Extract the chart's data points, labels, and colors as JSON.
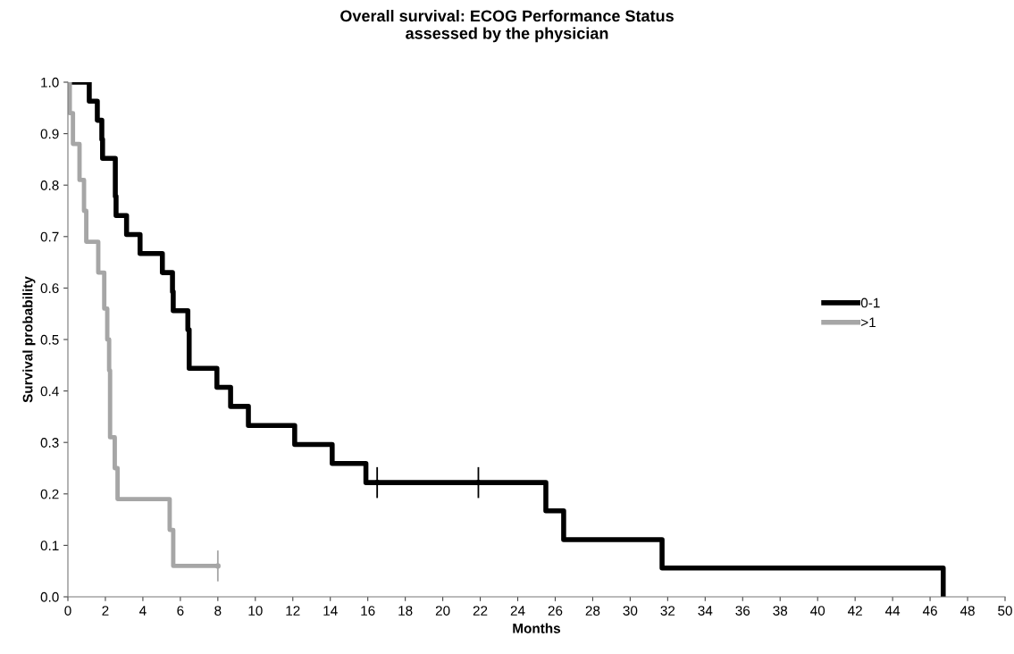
{
  "chart_data": {
    "type": "step",
    "title": "Overall survival: ECOG Performance Status\nassessed by the physician",
    "xlabel": "Months",
    "ylabel": "Survival probability",
    "series": [
      {
        "name": "0-1",
        "color": "#000000",
        "x": [
          0,
          1.14,
          1.57,
          1.81,
          1.85,
          2.53,
          2.57,
          3.13,
          3.85,
          5.04,
          5.58,
          5.62,
          6.4,
          6.47,
          7.95,
          8.68,
          9.63,
          12.1,
          14.1,
          15.9,
          25.5,
          26.45,
          31.7,
          46.7
        ],
        "values": [
          1.0,
          0.963,
          0.926,
          0.889,
          0.852,
          0.778,
          0.741,
          0.704,
          0.667,
          0.63,
          0.593,
          0.556,
          0.519,
          0.444,
          0.407,
          0.37,
          0.333,
          0.296,
          0.259,
          0.222,
          0.167,
          0.111,
          0.056,
          0.0
        ]
      },
      {
        "name": ">1",
        "color": "#a6a6a6",
        "x": [
          0,
          0.1,
          0.27,
          0.62,
          0.86,
          0.98,
          1.62,
          1.94,
          2.1,
          2.2,
          2.25,
          2.5,
          2.65,
          5.43,
          5.62,
          8.0
        ],
        "values": [
          1.0,
          0.94,
          0.88,
          0.81,
          0.75,
          0.69,
          0.63,
          0.56,
          0.5,
          0.44,
          0.31,
          0.25,
          0.19,
          0.13,
          0.06,
          0.06
        ]
      },
      {
        "type": "scatter",
        "color": "#000000",
        "marker": "circle",
        "x": [
          16.5,
          21.9
        ],
        "values": [
          0.222,
          0.222
        ],
        "errors": [
          0.03,
          0.03
        ]
      },
      {
        "type": "scatter",
        "color": "#a6a6a6",
        "marker": "circle",
        "x": [
          8.0
        ],
        "values": [
          0.06
        ],
        "errors": [
          0.03
        ]
      }
    ],
    "xlim": [
      0,
      50
    ],
    "xticks": [
      0,
      2,
      4,
      6,
      8,
      10,
      12,
      14,
      16,
      18,
      20,
      22,
      24,
      26,
      28,
      30,
      32,
      34,
      36,
      38,
      40,
      42,
      44,
      46,
      48,
      50
    ],
    "ylim": [
      0,
      1.0
    ],
    "yticks": [
      {
        "value": 0,
        "label": "0.0"
      },
      {
        "value": 0.1,
        "label": "0.1"
      },
      {
        "value": 0.2,
        "label": "0.2"
      },
      {
        "value": 0.3,
        "label": "0.3"
      },
      {
        "value": 0.4,
        "label": "0.4"
      },
      {
        "value": 0.5,
        "label": "0.5"
      },
      {
        "value": 0.6,
        "label": "0.6"
      },
      {
        "value": 0.7,
        "label": "0.7"
      },
      {
        "value": 0.8,
        "label": "0.8"
      },
      {
        "value": 0.9,
        "label": "0.9"
      },
      {
        "value": 1.0,
        "label": "1.0"
      }
    ],
    "grid": false,
    "legend": "right"
  }
}
